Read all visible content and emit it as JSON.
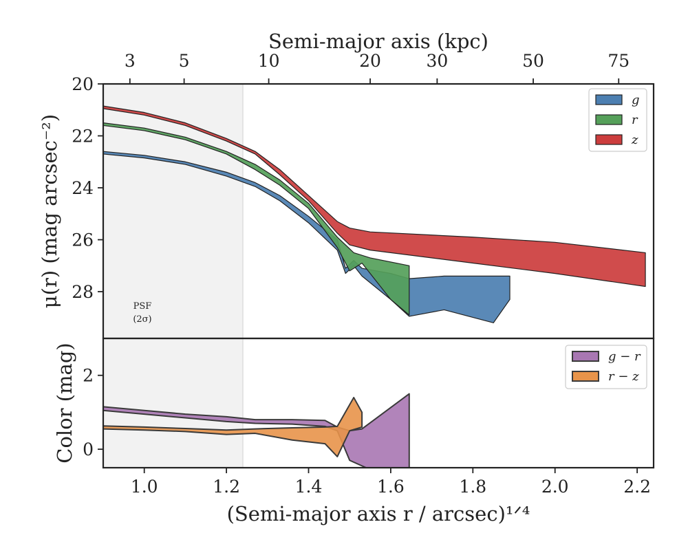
{
  "figure": {
    "top_axis_title": "Semi-major axis (kpc)",
    "ylabel_top": "μ(r) (mag arcsec⁻²)",
    "ylabel_bottom": "Color (mag)",
    "xlabel": "(Semi-major axis r / arcsec)¹ᐟ⁴",
    "psf_label_line1": "PSF",
    "psf_label_line2": "(2σ)"
  },
  "chart_data": [
    {
      "type": "area",
      "panel": "surface-brightness",
      "xlabel": "(Semi-major axis r / arcsec)^{1/4}",
      "ylabel": "μ(r) (mag arcsec^-2)",
      "secondary_xlabel": "Semi-major axis (kpc)",
      "xlim": [
        0.9,
        2.24
      ],
      "ylim": [
        20,
        29.8
      ],
      "y_inverted": true,
      "x_ticks": [
        1.0,
        1.2,
        1.4,
        1.6,
        1.8,
        2.0,
        2.2
      ],
      "x_tick_labels": [
        "1.0",
        "1.2",
        "1.4",
        "1.6",
        "1.8",
        "2.0",
        "2.2"
      ],
      "y_ticks": [
        20,
        22,
        24,
        26,
        28
      ],
      "y_tick_labels": [
        "20",
        "22",
        "24",
        "26",
        "28"
      ],
      "secondary_x_ticks_kpc": [
        3,
        5,
        10,
        20,
        30,
        50,
        75
      ],
      "secondary_x_tick_labels": [
        "3",
        "5",
        "10",
        "20",
        "30",
        "50",
        "75"
      ],
      "secondary_x_tick_positions": [
        0.965,
        1.097,
        1.303,
        1.55,
        1.713,
        1.947,
        2.155
      ],
      "psf_region_x": [
        0.9,
        1.24
      ],
      "legend_position": "top-right",
      "series": [
        {
          "name": "g",
          "color": "#4c7fb1",
          "upper": [
            [
              0.9,
              22.6
            ],
            [
              1.0,
              22.75
            ],
            [
              1.1,
              23.0
            ],
            [
              1.2,
              23.4
            ],
            [
              1.27,
              23.8
            ],
            [
              1.33,
              24.3
            ],
            [
              1.4,
              25.1
            ],
            [
              1.47,
              26.0
            ],
            [
              1.49,
              27.1
            ],
            [
              1.51,
              26.8
            ],
            [
              1.53,
              27.1
            ],
            [
              1.6,
              27.3
            ],
            [
              1.645,
              27.5
            ],
            [
              1.73,
              27.4
            ],
            [
              1.89,
              27.4
            ]
          ],
          "lower": [
            [
              0.9,
              22.7
            ],
            [
              1.0,
              22.85
            ],
            [
              1.1,
              23.1
            ],
            [
              1.2,
              23.55
            ],
            [
              1.27,
              23.95
            ],
            [
              1.33,
              24.5
            ],
            [
              1.4,
              25.35
            ],
            [
              1.47,
              26.4
            ],
            [
              1.49,
              27.3
            ],
            [
              1.51,
              27.0
            ],
            [
              1.53,
              27.4
            ],
            [
              1.6,
              28.3
            ],
            [
              1.645,
              28.95
            ],
            [
              1.73,
              28.7
            ],
            [
              1.85,
              29.2
            ],
            [
              1.89,
              28.3
            ]
          ],
          "note": "values estimated from figure"
        },
        {
          "name": "r",
          "color": "#55a05a",
          "upper": [
            [
              0.9,
              21.5
            ],
            [
              1.0,
              21.7
            ],
            [
              1.1,
              22.05
            ],
            [
              1.2,
              22.6
            ],
            [
              1.27,
              23.1
            ],
            [
              1.33,
              23.7
            ],
            [
              1.4,
              24.6
            ],
            [
              1.47,
              25.9
            ],
            [
              1.51,
              26.5
            ],
            [
              1.55,
              26.7
            ],
            [
              1.645,
              27.0
            ]
          ],
          "lower": [
            [
              0.9,
              21.6
            ],
            [
              1.0,
              21.8
            ],
            [
              1.1,
              22.15
            ],
            [
              1.2,
              22.7
            ],
            [
              1.27,
              23.3
            ],
            [
              1.33,
              23.9
            ],
            [
              1.4,
              24.8
            ],
            [
              1.47,
              26.3
            ],
            [
              1.5,
              27.2
            ],
            [
              1.53,
              26.9
            ],
            [
              1.6,
              28.3
            ],
            [
              1.645,
              28.9
            ]
          ]
        },
        {
          "name": "z",
          "color": "#cc3d3d",
          "upper": [
            [
              0.9,
              20.85
            ],
            [
              1.0,
              21.1
            ],
            [
              1.1,
              21.5
            ],
            [
              1.2,
              22.1
            ],
            [
              1.27,
              22.6
            ],
            [
              1.33,
              23.3
            ],
            [
              1.4,
              24.3
            ],
            [
              1.47,
              25.3
            ],
            [
              1.5,
              25.55
            ],
            [
              1.55,
              25.7
            ],
            [
              1.8,
              25.9
            ],
            [
              2.0,
              26.1
            ],
            [
              2.22,
              26.5
            ]
          ],
          "lower": [
            [
              0.9,
              20.95
            ],
            [
              1.0,
              21.2
            ],
            [
              1.1,
              21.6
            ],
            [
              1.2,
              22.2
            ],
            [
              1.27,
              22.7
            ],
            [
              1.33,
              23.5
            ],
            [
              1.4,
              24.5
            ],
            [
              1.47,
              25.75
            ],
            [
              1.5,
              26.2
            ],
            [
              1.55,
              26.4
            ],
            [
              1.8,
              26.9
            ],
            [
              2.0,
              27.3
            ],
            [
              2.22,
              27.8
            ]
          ]
        }
      ]
    },
    {
      "type": "area",
      "panel": "color",
      "xlabel": "(Semi-major axis r / arcsec)^{1/4}",
      "ylabel": "Color (mag)",
      "xlim": [
        0.9,
        2.24
      ],
      "ylim": [
        -0.5,
        3.0
      ],
      "y_ticks": [
        0,
        2
      ],
      "y_tick_labels": [
        "0",
        "2"
      ],
      "psf_region_x": [
        0.9,
        1.24
      ],
      "legend_position": "top-right",
      "series": [
        {
          "name": "g − r",
          "color": "#a877b2",
          "upper": [
            [
              0.9,
              1.15
            ],
            [
              1.0,
              1.05
            ],
            [
              1.1,
              0.95
            ],
            [
              1.2,
              0.88
            ],
            [
              1.27,
              0.8
            ],
            [
              1.36,
              0.8
            ],
            [
              1.44,
              0.78
            ],
            [
              1.47,
              0.6
            ],
            [
              1.5,
              0.5
            ],
            [
              1.53,
              0.55
            ],
            [
              1.645,
              1.5
            ]
          ],
          "lower": [
            [
              0.9,
              1.05
            ],
            [
              1.0,
              0.95
            ],
            [
              1.1,
              0.85
            ],
            [
              1.2,
              0.75
            ],
            [
              1.27,
              0.7
            ],
            [
              1.36,
              0.68
            ],
            [
              1.44,
              0.62
            ],
            [
              1.47,
              0.5
            ],
            [
              1.5,
              -0.3
            ],
            [
              1.55,
              -0.55
            ],
            [
              1.645,
              -0.55
            ]
          ]
        },
        {
          "name": "r − z",
          "color": "#e8944a",
          "upper": [
            [
              0.9,
              0.63
            ],
            [
              1.0,
              0.6
            ],
            [
              1.1,
              0.56
            ],
            [
              1.2,
              0.52
            ],
            [
              1.27,
              0.55
            ],
            [
              1.36,
              0.58
            ],
            [
              1.44,
              0.6
            ],
            [
              1.47,
              0.62
            ],
            [
              1.51,
              1.4
            ],
            [
              1.53,
              1.0
            ]
          ],
          "lower": [
            [
              0.9,
              0.55
            ],
            [
              1.0,
              0.52
            ],
            [
              1.1,
              0.48
            ],
            [
              1.2,
              0.4
            ],
            [
              1.27,
              0.43
            ],
            [
              1.36,
              0.25
            ],
            [
              1.44,
              0.15
            ],
            [
              1.47,
              -0.2
            ],
            [
              1.5,
              0.5
            ],
            [
              1.53,
              0.6
            ]
          ]
        }
      ]
    }
  ]
}
